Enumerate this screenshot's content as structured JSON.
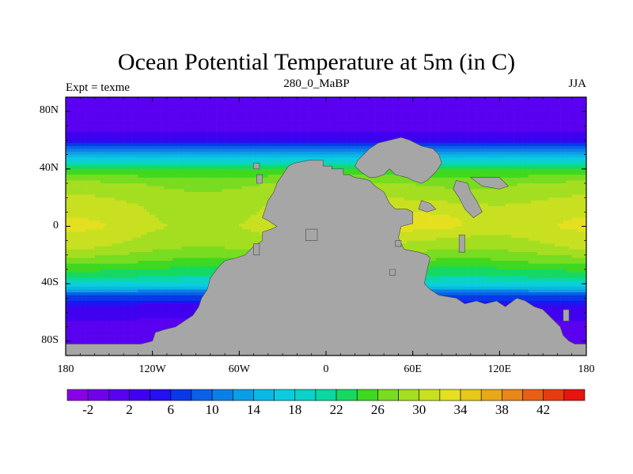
{
  "title": "Ocean Potential Temperature at 5m (in C)",
  "left_string": "Expt = texme",
  "center_string": "280_0_MaBP",
  "right_string": "JJA",
  "axes": {
    "lon_range": [
      -180,
      180
    ],
    "lat_range": [
      -90,
      90
    ],
    "x_ticks": [
      {
        "value": -180,
        "label": "180"
      },
      {
        "value": -120,
        "label": "120W"
      },
      {
        "value": -60,
        "label": "60W"
      },
      {
        "value": 0,
        "label": "0"
      },
      {
        "value": 60,
        "label": "60E"
      },
      {
        "value": 120,
        "label": "120E"
      },
      {
        "value": 180,
        "label": "180"
      }
    ],
    "y_ticks": [
      {
        "value": 80,
        "label": "80N"
      },
      {
        "value": 40,
        "label": "40N"
      },
      {
        "value": 0,
        "label": "0"
      },
      {
        "value": -40,
        "label": "40S"
      },
      {
        "value": -80,
        "label": "80S"
      }
    ]
  },
  "land_color": "#a6a6a6",
  "colorbar": {
    "colors": [
      "#8a00e6",
      "#7000ea",
      "#5a00f0",
      "#4000f0",
      "#2410f0",
      "#0838e8",
      "#0a60e8",
      "#0a80e6",
      "#0a9ee6",
      "#0ab8e6",
      "#0acce0",
      "#0ad2c8",
      "#0ad8a0",
      "#16d860",
      "#3ed820",
      "#78dc20",
      "#a4de20",
      "#c8e020",
      "#e4e020",
      "#e8c818",
      "#e8a818",
      "#e88818",
      "#e86014",
      "#e83c10",
      "#e81410"
    ],
    "tick_labels": [
      "-2",
      "2",
      "6",
      "10",
      "14",
      "18",
      "22",
      "26",
      "30",
      "34",
      "38",
      "42"
    ]
  },
  "chart_data": {
    "type": "heatmap",
    "title": "Ocean Potential Temperature at 5m (in C)",
    "variable": "ocean potential temperature at 5m (C)",
    "season": "JJA",
    "experiment": "texme",
    "time": "280_0_MaBP",
    "projection": "cylindrical equidistant",
    "lon_range": [
      -180,
      180
    ],
    "lat_range": [
      -90,
      90
    ],
    "contour_levels": [
      -4,
      -2,
      0,
      2,
      4,
      6,
      8,
      10,
      12,
      14,
      16,
      18,
      20,
      22,
      24,
      26,
      28,
      30,
      32,
      34,
      36,
      38,
      40,
      42
    ],
    "zonal_profile_open_ocean": [
      {
        "lat": 88,
        "temp": -1.5
      },
      {
        "lat": 70,
        "temp": -1
      },
      {
        "lat": 60,
        "temp": 2
      },
      {
        "lat": 50,
        "temp": 12
      },
      {
        "lat": 40,
        "temp": 22
      },
      {
        "lat": 30,
        "temp": 26
      },
      {
        "lat": 15,
        "temp": 28
      },
      {
        "lat": 0,
        "temp": 29
      },
      {
        "lat": -15,
        "temp": 27
      },
      {
        "lat": -25,
        "temp": 24
      },
      {
        "lat": -35,
        "temp": 20
      },
      {
        "lat": -42,
        "temp": 14
      },
      {
        "lat": -48,
        "temp": 6
      },
      {
        "lat": -55,
        "temp": 2
      },
      {
        "lat": -65,
        "temp": 0
      },
      {
        "lat": -90,
        "temp": -1.5
      }
    ],
    "tethys_equatorial_max": 32
  }
}
